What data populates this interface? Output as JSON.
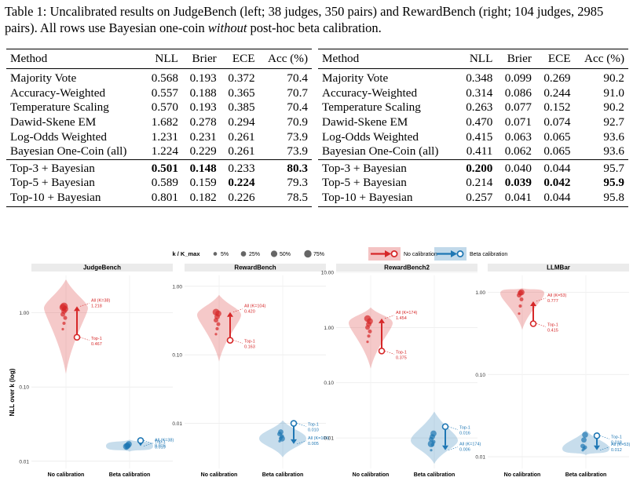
{
  "caption": {
    "pre": "Table 1: Uncalibrated results on JudgeBench (left; 38 judges, 350 pairs) and RewardBench (right; 104 judges, 2985 pairs). All rows use Bayesian one-coin ",
    "emph": "without",
    "post": " post-hoc beta calibration."
  },
  "tables": [
    {
      "headers": [
        "Method",
        "NLL",
        "Brier",
        "ECE",
        "Acc (%)"
      ],
      "group1": [
        [
          "Majority Vote",
          "0.568",
          "0.193",
          "0.372",
          "70.4"
        ],
        [
          "Accuracy-Weighted",
          "0.557",
          "0.188",
          "0.365",
          "70.7"
        ],
        [
          "Temperature Scaling",
          "0.570",
          "0.193",
          "0.385",
          "70.4"
        ],
        [
          "Dawid-Skene EM",
          "1.682",
          "0.278",
          "0.294",
          "70.9"
        ],
        [
          "Log-Odds Weighted",
          "1.231",
          "0.231",
          "0.261",
          "73.9"
        ],
        [
          "Bayesian One-Coin (all)",
          "1.224",
          "0.229",
          "0.261",
          "73.9"
        ]
      ],
      "group2": [
        [
          "Top-3 + Bayesian",
          "0.501",
          "0.148",
          "0.233",
          "80.3"
        ],
        [
          "Top-5 + Bayesian",
          "0.589",
          "0.159",
          "0.224",
          "79.3"
        ],
        [
          "Top-10 + Bayesian",
          "0.801",
          "0.182",
          "0.226",
          "78.5"
        ]
      ]
    },
    {
      "headers": [
        "Method",
        "NLL",
        "Brier",
        "ECE",
        "Acc (%)"
      ],
      "group1": [
        [
          "Majority Vote",
          "0.348",
          "0.099",
          "0.269",
          "90.2"
        ],
        [
          "Accuracy-Weighted",
          "0.314",
          "0.086",
          "0.244",
          "91.0"
        ],
        [
          "Temperature Scaling",
          "0.263",
          "0.077",
          "0.152",
          "90.2"
        ],
        [
          "Dawid-Skene EM",
          "0.470",
          "0.071",
          "0.074",
          "92.7"
        ],
        [
          "Log-Odds Weighted",
          "0.415",
          "0.063",
          "0.065",
          "93.6"
        ],
        [
          "Bayesian One-Coin (all)",
          "0.411",
          "0.062",
          "0.065",
          "93.6"
        ]
      ],
      "group2": [
        [
          "Top-3 + Bayesian",
          "0.200",
          "0.040",
          "0.044",
          "95.7"
        ],
        [
          "Top-5 + Bayesian",
          "0.214",
          "0.039",
          "0.042",
          "95.9"
        ],
        [
          "Top-10 + Bayesian",
          "0.257",
          "0.041",
          "0.044",
          "95.8"
        ]
      ]
    }
  ],
  "bold_cells": [
    [
      [
        0,
        1
      ],
      [
        0,
        2
      ],
      [
        0,
        4
      ],
      [
        1,
        3
      ]
    ],
    [
      [
        0,
        1
      ],
      [
        1,
        2
      ],
      [
        1,
        3
      ],
      [
        1,
        4
      ]
    ]
  ],
  "chart_data": {
    "type": "violin-dumbbell",
    "ylabel": "NLL over k (log)",
    "yscale": "log",
    "legend": {
      "size_title": "k / K_max",
      "sizes": [
        "5%",
        "25%",
        "50%",
        "75%"
      ],
      "size_fracs": [
        0.05,
        0.25,
        0.5,
        0.75
      ],
      "series": [
        {
          "name": "No calibration",
          "color": "#d62728"
        },
        {
          "name": "Beta calibration",
          "color": "#1f77b4"
        }
      ],
      "placement": "top"
    },
    "categories": [
      "No calibration",
      "Beta calibration"
    ],
    "panels": [
      {
        "title": "JudgeBench",
        "ylim": [
          0.008,
          3.5
        ],
        "ticks": [
          "1.00",
          "0.10",
          "0.01"
        ],
        "tick_values": [
          1,
          0.1,
          0.01
        ],
        "no_calib": {
          "all_label": "All (K=38)",
          "all": 1.218,
          "all_text": "1.218",
          "top1": 0.467,
          "top1_text": "0.467",
          "points": [
            0.6,
            0.72,
            0.85,
            0.95,
            1.05,
            1.12,
            1.18,
            1.22
          ],
          "violin": {
            "min": 0.15,
            "max": 2.8,
            "peak": 1.15
          }
        },
        "beta": {
          "all_label": "All (K=38)",
          "all": 0.016,
          "all_text": "0.016",
          "top1": 0.019,
          "top1_text": "0.019",
          "points": [
            0.015,
            0.0155,
            0.016,
            0.0162,
            0.0165,
            0.017,
            0.0158
          ],
          "violin": {
            "min": 0.0135,
            "max": 0.0195,
            "peak": 0.016
          }
        }
      },
      {
        "title": "RewardBench",
        "ylim": [
          0.0022,
          1.6
        ],
        "ticks": [
          "1.00",
          "0.10",
          "0.01"
        ],
        "tick_values": [
          1,
          0.1,
          0.01
        ],
        "no_calib": {
          "all_label": "All (K=104)",
          "all": 0.42,
          "all_text": "0.420",
          "top1": 0.163,
          "top1_text": "0.163",
          "points": [
            0.2,
            0.24,
            0.28,
            0.32,
            0.36,
            0.4,
            0.42
          ],
          "violin": {
            "min": 0.08,
            "max": 0.75,
            "peak": 0.38
          }
        },
        "beta": {
          "all_label": "All (K=104)",
          "all": 0.005,
          "all_text": "0.005",
          "top1": 0.01,
          "top1_text": "0.010",
          "points": [
            0.0055,
            0.006,
            0.0065,
            0.007,
            0.0075,
            0.006
          ],
          "violin": {
            "min": 0.0032,
            "max": 0.011,
            "peak": 0.006
          }
        }
      },
      {
        "title": "RewardBench2",
        "ylim": [
          0.0028,
          10
        ],
        "ticks": [
          "10.00",
          "1.00",
          "0.10",
          "0.01"
        ],
        "tick_values": [
          10,
          1,
          0.1,
          0.01
        ],
        "no_calib": {
          "all_label": "All (K=174)",
          "all": 1.454,
          "all_text": "1.454",
          "top1": 0.375,
          "top1_text": "0.375",
          "points": [
            0.55,
            0.7,
            0.85,
            1.0,
            1.15,
            1.3,
            1.45
          ],
          "violin": {
            "min": 0.18,
            "max": 2.3,
            "peak": 1.2
          }
        },
        "beta": {
          "all_label": "All (K=174)",
          "all": 0.006,
          "all_text": "0.006",
          "top1": 0.016,
          "top1_text": "0.016",
          "points": [
            0.006,
            0.0075,
            0.0085,
            0.0095,
            0.0105,
            0.012,
            0.0078
          ],
          "violin": {
            "min": 0.0034,
            "max": 0.03,
            "peak": 0.009
          }
        }
      },
      {
        "title": "LLMBar",
        "ylim": [
          0.0072,
          1.75
        ],
        "ticks": [
          "1.00",
          "0.10",
          "0.01"
        ],
        "tick_values": [
          1,
          0.1,
          0.01
        ],
        "no_calib": {
          "all_label": "All (K=53)",
          "all": 0.777,
          "all_text": "0.777",
          "top1": 0.415,
          "top1_text": "0.415",
          "points": [
            0.55,
            0.68,
            0.82,
            0.92,
            0.98,
            1.0
          ],
          "violin": {
            "min": 0.35,
            "max": 1.12,
            "peak": 0.97
          }
        },
        "beta": {
          "all_label": "All (K=53)",
          "all": 0.012,
          "all_text": "0.012",
          "top1": 0.018,
          "top1_text": "0.018",
          "points": [
            0.012,
            0.0125,
            0.013,
            0.0135,
            0.016,
            0.0185
          ],
          "violin": {
            "min": 0.0105,
            "max": 0.021,
            "peak": 0.0125
          }
        }
      }
    ]
  }
}
